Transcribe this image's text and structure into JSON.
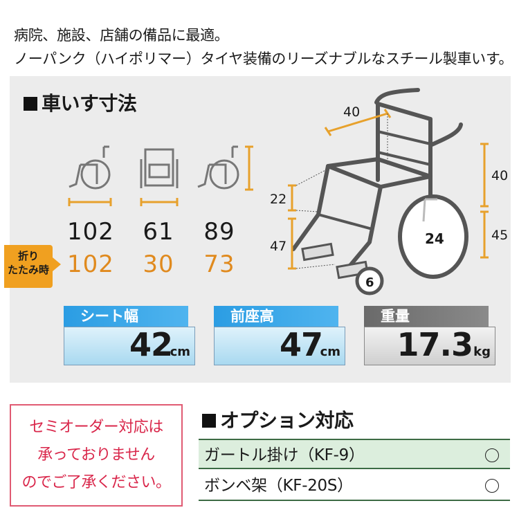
{
  "intro": {
    "line1": "病院、施設、店舗の備品に最適。",
    "line2": "ノーパンク（ハイポリマー）タイヤ装備のリーズナブルなスチール製車いす。"
  },
  "dimensions": {
    "title": "車いす寸法",
    "fold_label_line1": "折り",
    "fold_label_line2": "たたみ時",
    "normal": [
      "102",
      "61",
      "89"
    ],
    "folded": [
      "102",
      "30",
      "73"
    ]
  },
  "diagram": {
    "seat_depth": "40",
    "backrest_height": "40",
    "armrest_height": "22",
    "seat_height_left": "47",
    "seat_height_right": "45",
    "rear_wheel": "24",
    "front_wheel": "6"
  },
  "specs": [
    {
      "label": "シート幅",
      "value": "42",
      "unit": "cm"
    },
    {
      "label": "前座高",
      "value": "47",
      "unit": "cm"
    },
    {
      "label": "重量",
      "value": "17.3",
      "unit": "kg"
    }
  ],
  "notice": {
    "line1": "セミオーダー対応は",
    "line2": "承っておりません",
    "line3": "のでご了承ください。"
  },
  "options": {
    "title": "オプション対応",
    "items": [
      {
        "label": "ガートル掛け（KF-9）",
        "mark": "○"
      },
      {
        "label": "ボンベ架（KF-20S）",
        "mark": "○"
      }
    ]
  },
  "colors": {
    "accent_orange": "#e08a1e",
    "notice_red": "#d9264a",
    "spec_blue": "#2b9de3",
    "option_green": "#dceedd"
  }
}
